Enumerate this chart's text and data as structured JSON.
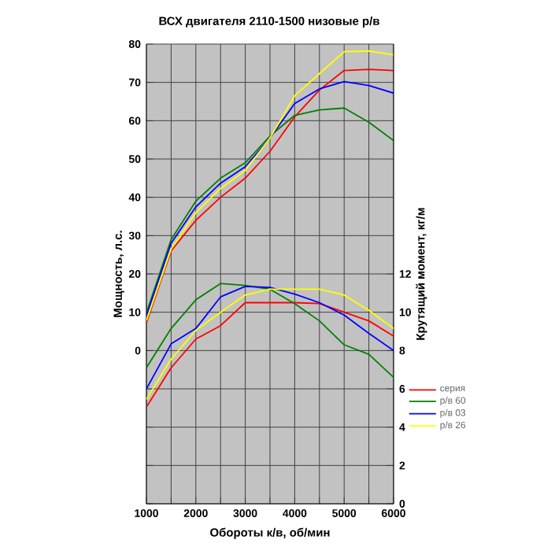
{
  "chart_data": {
    "type": "line",
    "title": "ВСХ двигателя 2110-1500 низовые р/в",
    "xlabel": "Обороты к/в, об/мин",
    "ylabel": "Мощность, л.с.",
    "y2label": "Крутящий момент, кг/м",
    "x": [
      1000,
      1500,
      2000,
      2500,
      3000,
      3500,
      4000,
      4500,
      5000,
      5500,
      6000
    ],
    "xlim": [
      1000,
      6000
    ],
    "xticks": [
      1000,
      {
        "value": 1500,
        "label": null
      },
      2000,
      {
        "value": 2500,
        "label": null
      },
      3000,
      {
        "value": 3500,
        "label": null
      },
      4000,
      {
        "value": 4500,
        "label": null
      },
      5000,
      {
        "value": 5500,
        "label": null
      },
      6000
    ],
    "ylim": [
      -40,
      80
    ],
    "yticks": [
      {
        "value": -40,
        "label": null
      },
      {
        "value": -30,
        "label": null
      },
      {
        "value": -20,
        "label": null
      },
      {
        "value": -10,
        "label": null
      },
      0,
      10,
      20,
      30,
      40,
      50,
      60,
      70,
      80
    ],
    "y2lim": [
      0,
      24
    ],
    "y2ticks": [
      0,
      2,
      4,
      6,
      8,
      10,
      12
    ],
    "grid": true,
    "legend": "right",
    "marker": "none",
    "line_style": "solid",
    "series": [
      {
        "name": "серия",
        "color": "#ff0000",
        "values": [
          7.2,
          26,
          34,
          40,
          45,
          52,
          61,
          68,
          73.1,
          73.4,
          73.1
        ]
      },
      {
        "name": "р/в 60",
        "color": "#008000",
        "values": [
          9.8,
          29,
          39,
          45,
          49,
          56,
          61.4,
          62.8,
          63.3,
          59.6,
          54.8
        ]
      },
      {
        "name": "р/в 03",
        "color": "#0000ff",
        "values": [
          9.1,
          28,
          37.5,
          43.7,
          48,
          55.5,
          64.5,
          68.3,
          70.2,
          69.2,
          67.2
        ]
      },
      {
        "name": "р/в 26",
        "color": "#ffff00",
        "values": [
          7.8,
          26.5,
          36,
          42.3,
          47,
          55.5,
          66.5,
          72.3,
          78,
          78.2,
          77.2
        ]
      },
      {
        "axis": "y2",
        "color": "#ff0000",
        "values": [
          5.05,
          7.1,
          8.6,
          9.3,
          10.5,
          10.5,
          10.5,
          10.45,
          10.0,
          9.55,
          8.75
        ]
      },
      {
        "axis": "y2",
        "color": "#008000",
        "values": [
          7.1,
          9.15,
          10.65,
          11.5,
          11.4,
          11.2,
          10.45,
          9.55,
          8.3,
          7.8,
          6.6
        ]
      },
      {
        "axis": "y2",
        "color": "#0000ff",
        "values": [
          6.0,
          8.35,
          9.15,
          10.8,
          11.35,
          11.3,
          10.95,
          10.5,
          9.85,
          8.9,
          8.0
        ]
      },
      {
        "axis": "y2",
        "color": "#ffff00",
        "values": [
          5.45,
          7.55,
          9.05,
          10.0,
          10.9,
          11.2,
          11.2,
          11.2,
          10.9,
          10.1,
          9.15
        ]
      }
    ]
  }
}
